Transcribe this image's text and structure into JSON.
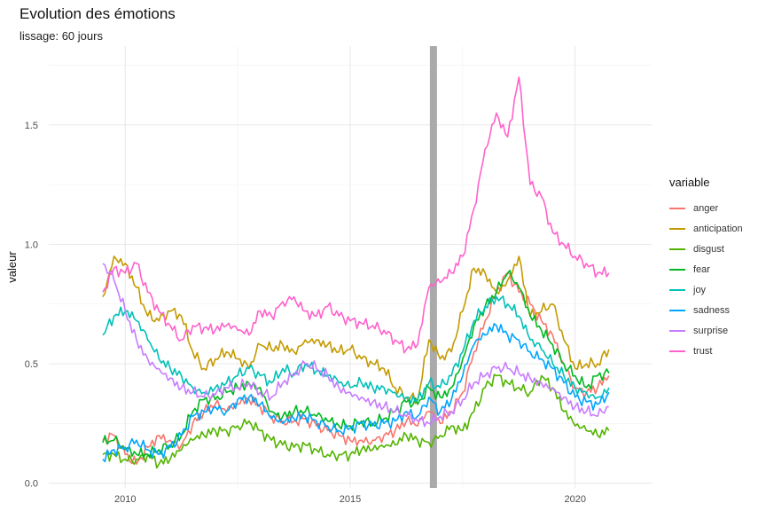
{
  "chart_data": {
    "type": "line",
    "title": "Evolution des émotions",
    "subtitle": "lissage: 60 jours",
    "xlabel": "",
    "ylabel": "valeur",
    "xlim": [
      2008.3,
      2021.7
    ],
    "ylim": [
      -0.02,
      1.83
    ],
    "x_ticks": [
      2010,
      2015,
      2020
    ],
    "x_tick_labels": [
      "2010",
      "2015",
      "2020"
    ],
    "y_ticks": [
      0.0,
      0.5,
      1.0,
      1.5
    ],
    "y_tick_labels": [
      "0.0",
      "0.5",
      "1.0",
      "1.5"
    ],
    "grid": true,
    "vline": {
      "x": 2016.85,
      "color": "#aaaaaa"
    },
    "legend": {
      "title": "variable",
      "placement": "right"
    },
    "x": [
      2009.5,
      2009.75,
      2010.0,
      2010.25,
      2010.5,
      2010.75,
      2011.0,
      2011.25,
      2011.5,
      2011.75,
      2012.0,
      2012.25,
      2012.5,
      2012.75,
      2013.0,
      2013.25,
      2013.5,
      2013.75,
      2014.0,
      2014.25,
      2014.5,
      2014.75,
      2015.0,
      2015.25,
      2015.5,
      2015.75,
      2016.0,
      2016.25,
      2016.5,
      2016.75,
      2017.0,
      2017.25,
      2017.5,
      2017.75,
      2018.0,
      2018.25,
      2018.5,
      2018.75,
      2019.0,
      2019.25,
      2019.5,
      2019.75,
      2020.0,
      2020.25,
      2020.5,
      2020.75
    ],
    "series": [
      {
        "name": "anger",
        "color": "#F8766D",
        "values": [
          0.18,
          0.2,
          0.12,
          0.08,
          0.15,
          0.2,
          0.18,
          0.16,
          0.25,
          0.3,
          0.33,
          0.3,
          0.33,
          0.35,
          0.32,
          0.28,
          0.26,
          0.26,
          0.27,
          0.24,
          0.22,
          0.2,
          0.18,
          0.18,
          0.18,
          0.2,
          0.22,
          0.26,
          0.24,
          0.3,
          0.25,
          0.3,
          0.38,
          0.55,
          0.68,
          0.8,
          0.88,
          0.8,
          0.75,
          0.68,
          0.62,
          0.5,
          0.4,
          0.38,
          0.4,
          0.45
        ]
      },
      {
        "name": "anticipation",
        "color": "#C49A00",
        "values": [
          0.78,
          0.95,
          0.92,
          0.82,
          0.7,
          0.68,
          0.72,
          0.7,
          0.55,
          0.48,
          0.52,
          0.55,
          0.52,
          0.48,
          0.58,
          0.56,
          0.58,
          0.55,
          0.6,
          0.6,
          0.58,
          0.55,
          0.56,
          0.52,
          0.5,
          0.48,
          0.4,
          0.36,
          0.35,
          0.6,
          0.52,
          0.55,
          0.72,
          0.9,
          0.88,
          0.8,
          0.85,
          0.95,
          0.7,
          0.72,
          0.75,
          0.6,
          0.48,
          0.5,
          0.5,
          0.56
        ]
      },
      {
        "name": "disgust",
        "color": "#53B400",
        "values": [
          0.12,
          0.12,
          0.1,
          0.1,
          0.12,
          0.08,
          0.1,
          0.14,
          0.18,
          0.2,
          0.22,
          0.22,
          0.24,
          0.26,
          0.22,
          0.18,
          0.16,
          0.15,
          0.16,
          0.14,
          0.12,
          0.12,
          0.12,
          0.14,
          0.14,
          0.15,
          0.16,
          0.2,
          0.18,
          0.17,
          0.2,
          0.24,
          0.22,
          0.3,
          0.4,
          0.45,
          0.42,
          0.4,
          0.38,
          0.45,
          0.4,
          0.3,
          0.24,
          0.22,
          0.2,
          0.22
        ]
      },
      {
        "name": "fear",
        "color": "#00B81F",
        "values": [
          0.17,
          0.18,
          0.14,
          0.12,
          0.12,
          0.14,
          0.16,
          0.2,
          0.3,
          0.35,
          0.35,
          0.38,
          0.4,
          0.42,
          0.4,
          0.3,
          0.28,
          0.3,
          0.3,
          0.28,
          0.26,
          0.24,
          0.24,
          0.26,
          0.25,
          0.27,
          0.3,
          0.34,
          0.33,
          0.4,
          0.36,
          0.4,
          0.52,
          0.66,
          0.74,
          0.8,
          0.88,
          0.82,
          0.7,
          0.64,
          0.58,
          0.5,
          0.45,
          0.4,
          0.45,
          0.46
        ]
      },
      {
        "name": "joy",
        "color": "#00C0B8",
        "values": [
          0.62,
          0.7,
          0.72,
          0.68,
          0.6,
          0.52,
          0.48,
          0.45,
          0.4,
          0.38,
          0.4,
          0.42,
          0.45,
          0.48,
          0.45,
          0.42,
          0.48,
          0.46,
          0.5,
          0.47,
          0.45,
          0.42,
          0.4,
          0.42,
          0.4,
          0.4,
          0.38,
          0.36,
          0.35,
          0.42,
          0.4,
          0.45,
          0.55,
          0.68,
          0.74,
          0.78,
          0.75,
          0.7,
          0.6,
          0.56,
          0.5,
          0.45,
          0.4,
          0.38,
          0.36,
          0.4
        ]
      },
      {
        "name": "sadness",
        "color": "#00A5FF",
        "values": [
          0.1,
          0.14,
          0.15,
          0.18,
          0.14,
          0.12,
          0.15,
          0.2,
          0.28,
          0.3,
          0.32,
          0.3,
          0.35,
          0.36,
          0.33,
          0.27,
          0.25,
          0.27,
          0.28,
          0.26,
          0.24,
          0.22,
          0.23,
          0.25,
          0.24,
          0.25,
          0.26,
          0.3,
          0.28,
          0.36,
          0.3,
          0.35,
          0.45,
          0.58,
          0.62,
          0.66,
          0.62,
          0.6,
          0.55,
          0.52,
          0.48,
          0.42,
          0.36,
          0.34,
          0.33,
          0.38
        ]
      },
      {
        "name": "surprise",
        "color": "#C77CFF",
        "values": [
          0.92,
          0.85,
          0.72,
          0.6,
          0.52,
          0.48,
          0.44,
          0.4,
          0.38,
          0.36,
          0.37,
          0.4,
          0.4,
          0.42,
          0.38,
          0.36,
          0.42,
          0.45,
          0.5,
          0.48,
          0.45,
          0.4,
          0.38,
          0.36,
          0.34,
          0.32,
          0.3,
          0.28,
          0.26,
          0.25,
          0.28,
          0.3,
          0.35,
          0.42,
          0.45,
          0.48,
          0.48,
          0.46,
          0.44,
          0.42,
          0.4,
          0.36,
          0.32,
          0.3,
          0.28,
          0.32
        ]
      },
      {
        "name": "trust",
        "color": "#FF61CC",
        "values": [
          0.8,
          0.9,
          0.88,
          0.92,
          0.8,
          0.72,
          0.66,
          0.6,
          0.66,
          0.65,
          0.64,
          0.66,
          0.64,
          0.62,
          0.72,
          0.7,
          0.76,
          0.78,
          0.72,
          0.7,
          0.74,
          0.7,
          0.68,
          0.67,
          0.66,
          0.64,
          0.6,
          0.56,
          0.58,
          0.82,
          0.84,
          0.88,
          0.95,
          1.15,
          1.4,
          1.55,
          1.45,
          1.7,
          1.25,
          1.2,
          1.05,
          1.0,
          0.95,
          0.92,
          0.88,
          0.88
        ]
      }
    ]
  }
}
